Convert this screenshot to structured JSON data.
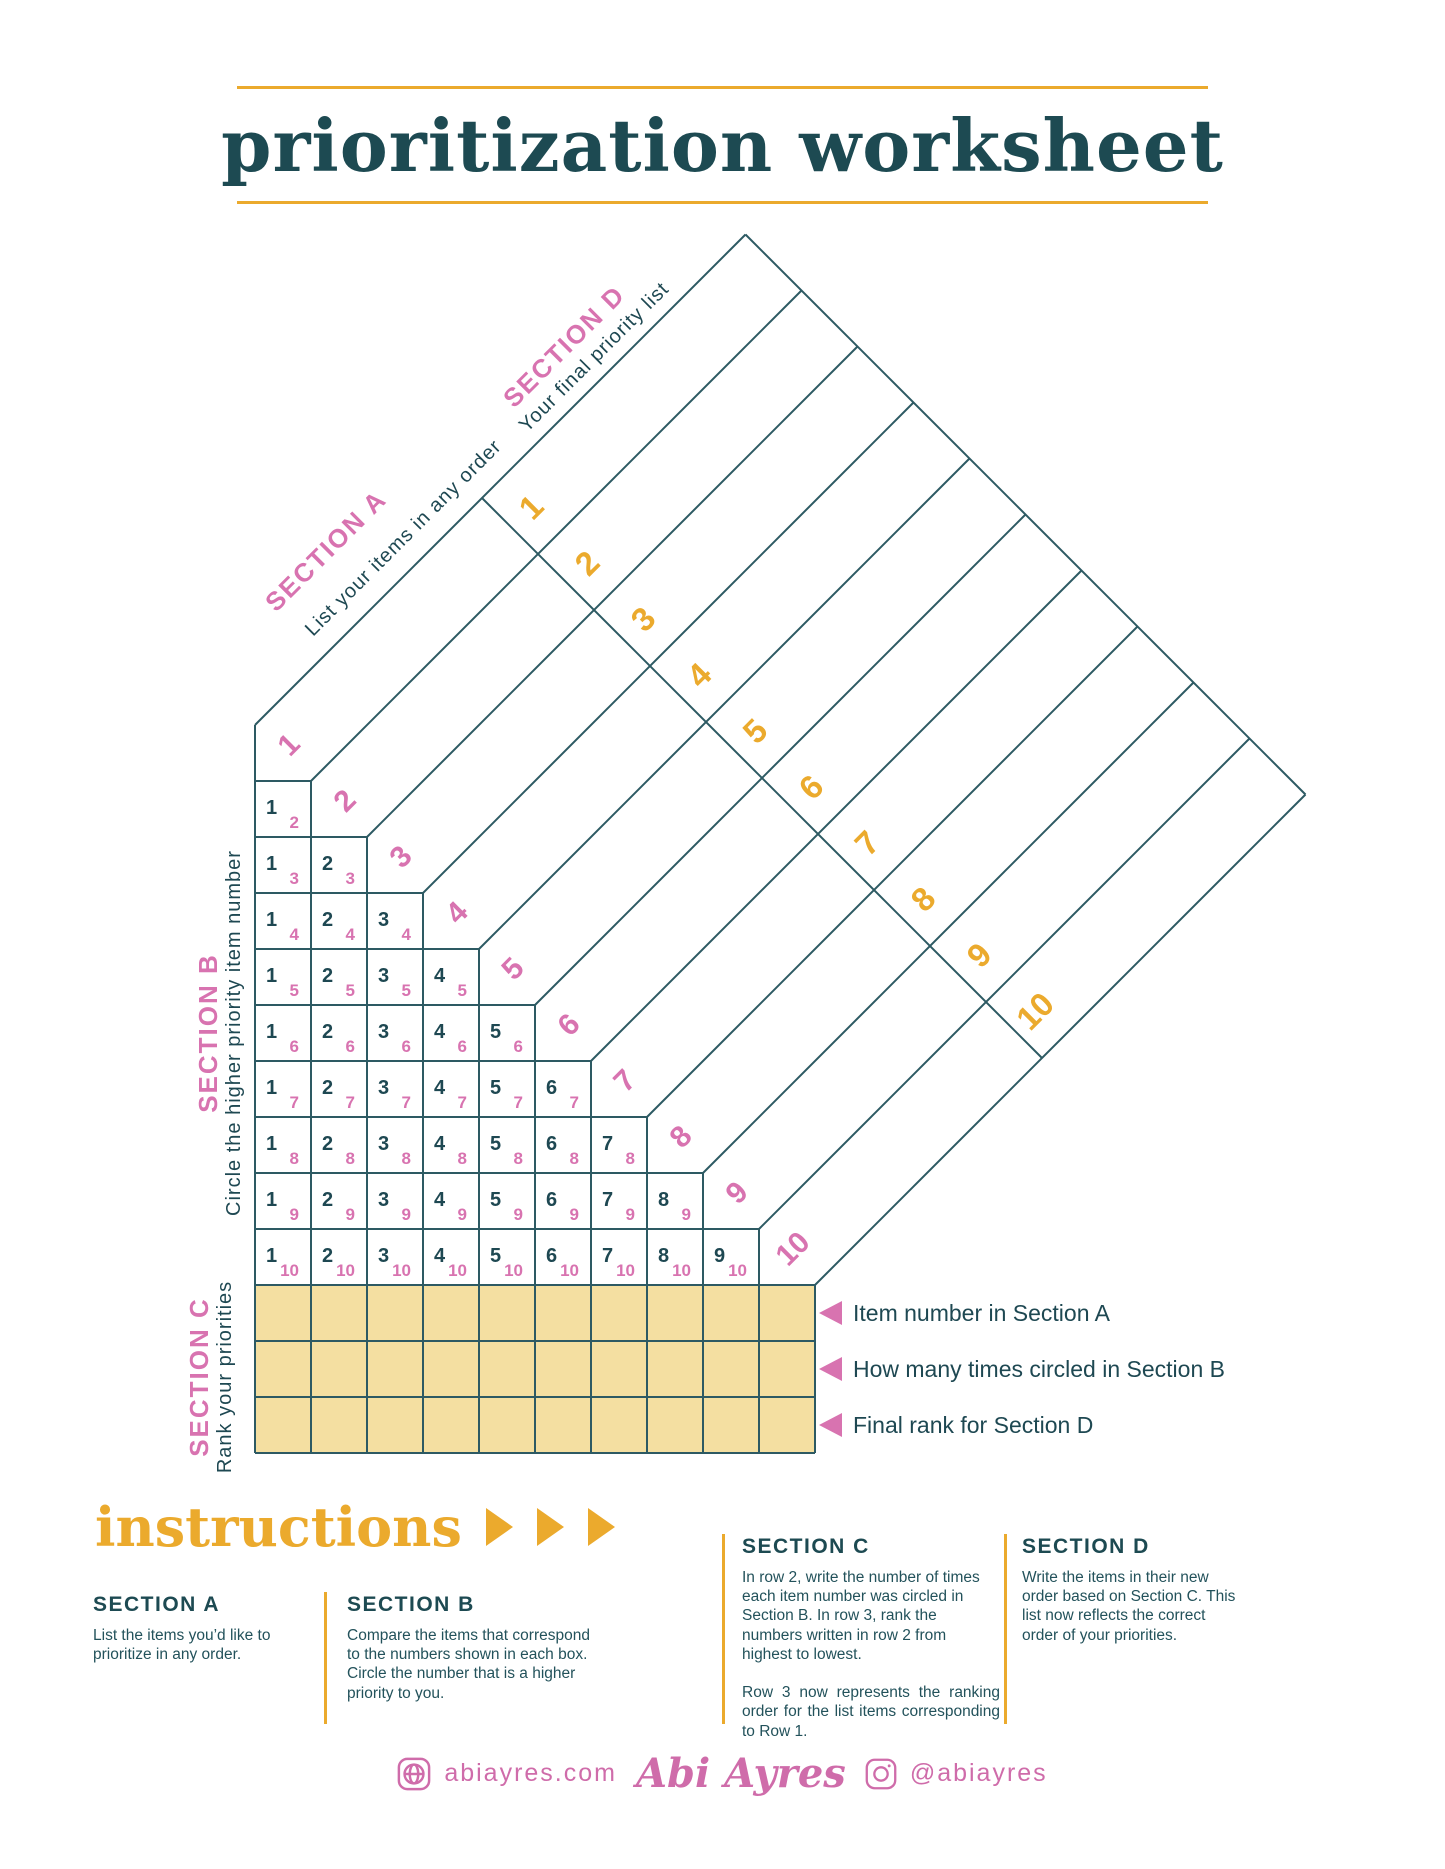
{
  "title": "prioritization worksheet",
  "colors": {
    "teal": "#1d4a52",
    "line": "#2d5a63",
    "pink": "#d873b0",
    "amber": "#ebaa2d",
    "table_fill": "#f4dfa1",
    "footer_pink": "#cf6caa"
  },
  "diagram": {
    "section_a": {
      "label": "SECTION A",
      "sublabel": "List your items in any order",
      "numbers": [
        1,
        2,
        3,
        4,
        5,
        6,
        7,
        8,
        9,
        10
      ]
    },
    "section_d": {
      "label": "SECTION D",
      "sublabel": "Your final priority list",
      "numbers": [
        1,
        2,
        3,
        4,
        5,
        6,
        7,
        8,
        9,
        10
      ]
    },
    "section_b": {
      "label": "SECTION B",
      "sublabel": "Circle the higher priority item number",
      "rows": [
        {
          "item": 2,
          "compare_with": [
            1
          ]
        },
        {
          "item": 3,
          "compare_with": [
            1,
            2
          ]
        },
        {
          "item": 4,
          "compare_with": [
            1,
            2,
            3
          ]
        },
        {
          "item": 5,
          "compare_with": [
            1,
            2,
            3,
            4
          ]
        },
        {
          "item": 6,
          "compare_with": [
            1,
            2,
            3,
            4,
            5
          ]
        },
        {
          "item": 7,
          "compare_with": [
            1,
            2,
            3,
            4,
            5,
            6
          ]
        },
        {
          "item": 8,
          "compare_with": [
            1,
            2,
            3,
            4,
            5,
            6,
            7
          ]
        },
        {
          "item": 9,
          "compare_with": [
            1,
            2,
            3,
            4,
            5,
            6,
            7,
            8
          ]
        },
        {
          "item": 10,
          "compare_with": [
            1,
            2,
            3,
            4,
            5,
            6,
            7,
            8,
            9
          ]
        }
      ]
    },
    "section_c": {
      "label": "SECTION C",
      "sublabel": "Rank your priorities",
      "columns": 10,
      "rows": 3
    },
    "legend": [
      {
        "label": "Item number in Section A"
      },
      {
        "label": "How many times circled in Section B"
      },
      {
        "label": "Final rank for Section D"
      }
    ]
  },
  "instructions": {
    "heading": "instructions",
    "columns": [
      {
        "heading": "SECTION A",
        "paragraphs": [
          "List the items you’d like to prioritize in any order."
        ]
      },
      {
        "heading": "SECTION B",
        "paragraphs": [
          "Compare the items that correspond to the numbers shown in each box. Circle the number that is a higher priority to you."
        ]
      },
      {
        "heading": "SECTION C",
        "paragraphs": [
          "In row 2, write the number of times each item number was circled in Section B. In row 3, rank the numbers written in row 2 from highest to lowest.",
          "Row 3 now represents the ranking order for the list items corresponding to Row 1."
        ]
      },
      {
        "heading": "SECTION D",
        "paragraphs": [
          "Write the items in their new order based on Section C. This list now reflects the correct order of your priorities."
        ]
      }
    ]
  },
  "footer": {
    "website": "abiayres.com",
    "name": "Abi Ayres",
    "instagram": "@abiayres"
  }
}
